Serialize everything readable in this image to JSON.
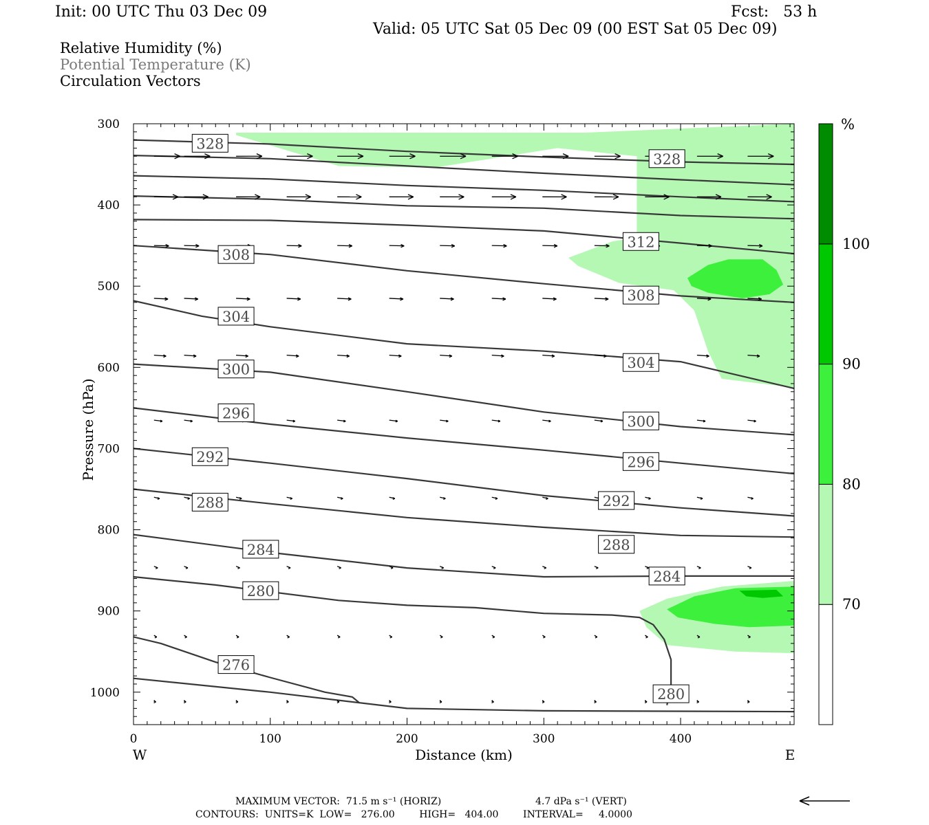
{
  "header": {
    "init": "Init: 00 UTC Thu 03 Dec 09",
    "fcst": "Fcst:   53 h",
    "valid": "Valid: 05 UTC Sat 05 Dec 09 (00 EST Sat 05 Dec 09)"
  },
  "legend": {
    "line1": "Relative Humidity (%)",
    "line2": "Potential Temperature (K)",
    "line3": "Circulation Vectors"
  },
  "colors": {
    "rh70": "#b4f8b4",
    "rh80": "#3cf03c",
    "rh90": "#00c800",
    "rh100": "#008c00",
    "theta_line": "#383838",
    "theta_label": "#4a4a4a"
  },
  "footer": {
    "max_vector_horiz": "MAXIMUM VECTOR:  71.5 m s⁻¹ (HORIZ)",
    "max_vector_vert": "4.7 dPa s⁻¹ (VERT)",
    "contours": "CONTOURS:  UNITS=K  LOW=   276.00        HIGH=   404.00        INTERVAL=     4.0000"
  },
  "chart_data": {
    "type": "cross-section",
    "xlabel": "Distance (km)",
    "ylabel": "Pressure (hPa)",
    "x_range": [
      0,
      483
    ],
    "y_range": [
      1040,
      300
    ],
    "y_scale": "linear-inverted",
    "x_ticks": [
      0,
      100,
      200,
      300,
      400
    ],
    "y_ticks": [
      300,
      400,
      500,
      600,
      700,
      800,
      900,
      1000
    ],
    "x_end_labels": {
      "left": "W",
      "right": "E"
    },
    "colorbar": {
      "unit": "%",
      "levels": [
        70,
        80,
        90,
        100
      ],
      "colors": [
        "#ffffff",
        "#b4f8b4",
        "#3cf03c",
        "#00c800",
        "#008c00"
      ]
    },
    "rh_regions": [
      {
        "level": 70,
        "points": [
          [
            75,
            311
          ],
          [
            200,
            311
          ],
          [
            330,
            311
          ],
          [
            483,
            300
          ],
          [
            483,
            625
          ],
          [
            430,
            614
          ],
          [
            420,
            580
          ],
          [
            410,
            530
          ],
          [
            395,
            505
          ],
          [
            355,
            496
          ],
          [
            325,
            475
          ],
          [
            318,
            465
          ],
          [
            350,
            445
          ],
          [
            368,
            440
          ],
          [
            368,
            405
          ],
          [
            368,
            340
          ],
          [
            310,
            330
          ],
          [
            220,
            354
          ],
          [
            180,
            353
          ],
          [
            150,
            352
          ],
          [
            75,
            314
          ]
        ]
      },
      {
        "level": 70,
        "points": [
          [
            370,
            900
          ],
          [
            390,
            885
          ],
          [
            430,
            870
          ],
          [
            483,
            863
          ],
          [
            483,
            952
          ],
          [
            440,
            950
          ],
          [
            390,
            942
          ],
          [
            375,
            920
          ]
        ]
      },
      {
        "level": 80,
        "points": [
          [
            405,
            490
          ],
          [
            420,
            474
          ],
          [
            435,
            467
          ],
          [
            460,
            467
          ],
          [
            470,
            480
          ],
          [
            475,
            498
          ],
          [
            465,
            510
          ],
          [
            445,
            515
          ],
          [
            420,
            508
          ],
          [
            408,
            500
          ]
        ]
      },
      {
        "level": 80,
        "points": [
          [
            390,
            898
          ],
          [
            410,
            882
          ],
          [
            440,
            872
          ],
          [
            483,
            870
          ],
          [
            483,
            918
          ],
          [
            450,
            920
          ],
          [
            425,
            916
          ],
          [
            398,
            908
          ]
        ]
      },
      {
        "level": 90,
        "points": [
          [
            443,
            875
          ],
          [
            470,
            874
          ],
          [
            475,
            882
          ],
          [
            460,
            884
          ],
          [
            448,
            882
          ]
        ]
      }
    ],
    "theta_contours": [
      {
        "value": 276,
        "points": [
          [
            0,
            932
          ],
          [
            20,
            940
          ],
          [
            60,
            963
          ],
          [
            100,
            982
          ],
          [
            140,
            1000
          ],
          [
            160,
            1006
          ],
          [
            165,
            1013
          ]
        ]
      },
      {
        "value": 276,
        "points": [
          [
            0,
            983
          ],
          [
            100,
            1000
          ],
          [
            200,
            1020
          ],
          [
            300,
            1023
          ],
          [
            483,
            1024
          ]
        ]
      },
      {
        "value": 280,
        "points": [
          [
            0,
            858
          ],
          [
            60,
            868
          ],
          [
            150,
            887
          ],
          [
            200,
            893
          ],
          [
            250,
            896
          ],
          [
            300,
            903
          ],
          [
            350,
            905
          ],
          [
            370,
            908
          ],
          [
            380,
            917
          ],
          [
            388,
            935
          ],
          [
            393,
            960
          ],
          [
            393,
            990
          ],
          [
            390,
            1016
          ]
        ]
      },
      {
        "value": 284,
        "points": [
          [
            0,
            806
          ],
          [
            100,
            828
          ],
          [
            200,
            847
          ],
          [
            300,
            858
          ],
          [
            400,
            857
          ],
          [
            483,
            857
          ]
        ]
      },
      {
        "value": 288,
        "points": [
          [
            0,
            750
          ],
          [
            100,
            768
          ],
          [
            200,
            785
          ],
          [
            300,
            797
          ],
          [
            400,
            807
          ],
          [
            483,
            809
          ]
        ]
      },
      {
        "value": 292,
        "points": [
          [
            0,
            700
          ],
          [
            100,
            718
          ],
          [
            200,
            737
          ],
          [
            300,
            758
          ],
          [
            400,
            773
          ],
          [
            483,
            783
          ]
        ]
      },
      {
        "value": 296,
        "points": [
          [
            0,
            650
          ],
          [
            100,
            670
          ],
          [
            200,
            687
          ],
          [
            300,
            702
          ],
          [
            400,
            718
          ],
          [
            483,
            731
          ]
        ]
      },
      {
        "value": 300,
        "points": [
          [
            0,
            596
          ],
          [
            100,
            606
          ],
          [
            200,
            630
          ],
          [
            300,
            655
          ],
          [
            400,
            673
          ],
          [
            483,
            683
          ]
        ]
      },
      {
        "value": 304,
        "points": [
          [
            0,
            518
          ],
          [
            50,
            537
          ],
          [
            100,
            550
          ],
          [
            200,
            571
          ],
          [
            300,
            580
          ],
          [
            400,
            593
          ],
          [
            483,
            626
          ]
        ]
      },
      {
        "value": 308,
        "points": [
          [
            0,
            450
          ],
          [
            100,
            461
          ],
          [
            200,
            481
          ],
          [
            300,
            497
          ],
          [
            400,
            512
          ],
          [
            483,
            520
          ]
        ]
      },
      {
        "value": 312,
        "points": [
          [
            0,
            418
          ],
          [
            100,
            419
          ],
          [
            200,
            425
          ],
          [
            300,
            432
          ],
          [
            400,
            447
          ],
          [
            483,
            460
          ]
        ]
      },
      {
        "value": 316,
        "points": [
          [
            0,
            389
          ],
          [
            100,
            393
          ],
          [
            200,
            401
          ],
          [
            300,
            404
          ],
          [
            400,
            413
          ],
          [
            483,
            417
          ]
        ]
      },
      {
        "value": 320,
        "points": [
          [
            0,
            364
          ],
          [
            100,
            368
          ],
          [
            200,
            376
          ],
          [
            300,
            382
          ],
          [
            400,
            390
          ],
          [
            483,
            396
          ]
        ]
      },
      {
        "value": 324,
        "points": [
          [
            0,
            339
          ],
          [
            100,
            343
          ],
          [
            200,
            352
          ],
          [
            300,
            361
          ],
          [
            400,
            369
          ],
          [
            483,
            375
          ]
        ]
      },
      {
        "value": 328,
        "points": [
          [
            0,
            320
          ],
          [
            100,
            325
          ],
          [
            200,
            334
          ],
          [
            300,
            341
          ],
          [
            400,
            347
          ],
          [
            483,
            350
          ]
        ]
      }
    ],
    "contour_labels": [
      {
        "text": "328",
        "x": 56,
        "p": 324
      },
      {
        "text": "328",
        "x": 390,
        "p": 343
      },
      {
        "text": "312",
        "x": 371,
        "p": 445
      },
      {
        "text": "308",
        "x": 75,
        "p": 461
      },
      {
        "text": "308",
        "x": 371,
        "p": 511
      },
      {
        "text": "304",
        "x": 75,
        "p": 537
      },
      {
        "text": "304",
        "x": 371,
        "p": 594
      },
      {
        "text": "300",
        "x": 75,
        "p": 602
      },
      {
        "text": "300",
        "x": 371,
        "p": 666
      },
      {
        "text": "296",
        "x": 75,
        "p": 656
      },
      {
        "text": "296",
        "x": 371,
        "p": 716
      },
      {
        "text": "292",
        "x": 56,
        "p": 710
      },
      {
        "text": "292",
        "x": 353,
        "p": 764
      },
      {
        "text": "288",
        "x": 56,
        "p": 766
      },
      {
        "text": "288",
        "x": 353,
        "p": 818
      },
      {
        "text": "284",
        "x": 93,
        "p": 824
      },
      {
        "text": "284",
        "x": 390,
        "p": 857
      },
      {
        "text": "280",
        "x": 93,
        "p": 875
      },
      {
        "text": "280",
        "x": 393,
        "p": 1002
      },
      {
        "text": "276",
        "x": 75,
        "p": 966
      }
    ],
    "vector_rows": [
      {
        "p": 340,
        "ux": 28,
        "uy": 0.0,
        "xs": [
          15,
          37,
          75,
          112,
          149,
          187,
          224,
          262,
          299,
          337,
          374,
          412,
          449
        ]
      },
      {
        "p": 390,
        "ux": 26,
        "uy": 0.1,
        "xs": [
          15,
          37,
          75,
          112,
          149,
          187,
          224,
          262,
          299,
          337,
          374,
          412,
          449
        ]
      },
      {
        "p": 450,
        "ux": 16,
        "uy": 0.5,
        "xs": [
          15,
          37,
          75,
          112,
          149,
          187,
          224,
          262,
          299,
          337,
          374,
          412,
          449
        ]
      },
      {
        "p": 515,
        "ux": 15,
        "uy": 1.0,
        "xs": [
          15,
          37,
          75,
          112,
          149,
          187,
          224,
          262,
          299,
          337,
          374,
          412,
          449
        ]
      },
      {
        "p": 585,
        "ux": 13,
        "uy": 1.3,
        "xs": [
          15,
          37,
          75,
          112,
          149,
          187,
          224,
          262,
          299,
          337,
          374,
          412,
          449
        ]
      },
      {
        "p": 665,
        "ux": 9,
        "uy": 1.5,
        "xs": [
          15,
          37,
          75,
          112,
          149,
          187,
          224,
          262,
          299,
          337,
          374,
          412,
          449
        ]
      },
      {
        "p": 760,
        "ux": 6,
        "uy": 1.8,
        "xs": [
          15,
          37,
          75,
          112,
          149,
          187,
          224,
          262,
          299,
          337,
          374,
          412,
          449
        ]
      },
      {
        "p": 845,
        "ux": 4,
        "uy": 2.3,
        "xs": [
          15,
          37,
          75,
          112,
          149,
          187,
          224,
          262,
          299,
          337,
          374,
          412,
          449
        ]
      },
      {
        "p": 930,
        "ux": 3,
        "uy": 2.5,
        "xs": [
          15,
          37,
          75,
          112,
          149,
          187,
          224,
          262,
          299,
          337,
          374,
          412,
          449
        ]
      },
      {
        "p": 1010,
        "ux": 2,
        "uy": 2.5,
        "xs": [
          15,
          37,
          75,
          112,
          149,
          187,
          224,
          262,
          299,
          337,
          374,
          412,
          449
        ]
      }
    ]
  }
}
